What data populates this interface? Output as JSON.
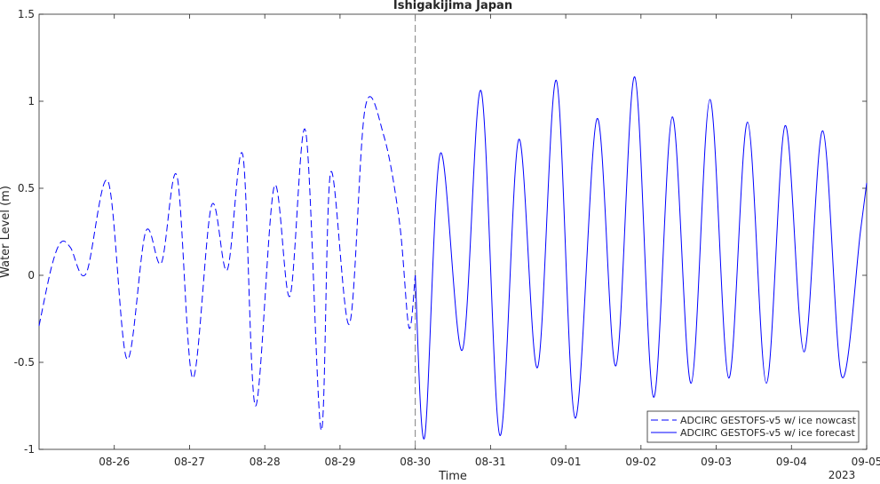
{
  "chart_data": {
    "type": "line",
    "title": "Ishigakijima Japan",
    "xlabel": "Time",
    "ylabel": "Water Level (m)",
    "year_label": "2023",
    "xlim": [
      "2023-08-25T00:00",
      "2023-09-05T00:00"
    ],
    "ylim": [
      -1,
      1.5
    ],
    "yticks": [
      -1,
      -0.5,
      0,
      0.5,
      1,
      1.5
    ],
    "ytick_labels": [
      "-1",
      "-0.5",
      "0",
      "0.5",
      "1",
      "1.5"
    ],
    "xticks": [
      "2023-08-26",
      "2023-08-27",
      "2023-08-28",
      "2023-08-29",
      "2023-08-30",
      "2023-08-31",
      "2023-09-01",
      "2023-09-02",
      "2023-09-03",
      "2023-09-04",
      "2023-09-05"
    ],
    "xtick_labels": [
      "08-26",
      "08-27",
      "08-28",
      "08-29",
      "08-30",
      "08-31",
      "09-01",
      "09-02",
      "09-03",
      "09-04",
      "09-05"
    ],
    "grid": false,
    "legend_position": "bottom-right",
    "annotations": [
      {
        "type": "vertical-line",
        "x": "2023-08-30T00:00",
        "style": "dashed",
        "color": "#808080"
      }
    ],
    "series": [
      {
        "name": "ADCIRC GESTOFS-v5 w/ ice nowcast",
        "style": "dashed",
        "color": "#0000ff",
        "x": [
          "2023-08-25T00:00",
          "2023-08-25T04:00",
          "2023-08-25T07:00",
          "2023-08-25T10:00",
          "2023-08-25T15:00",
          "2023-08-25T22:00",
          "2023-08-26T04:00",
          "2023-08-26T10:00",
          "2023-08-26T15:00",
          "2023-08-26T20:00",
          "2023-08-27T01:00",
          "2023-08-27T07:00",
          "2023-08-27T12:00",
          "2023-08-27T17:00",
          "2023-08-27T21:00",
          "2023-08-28T03:00",
          "2023-08-28T08:00",
          "2023-08-28T13:00",
          "2023-08-28T18:00",
          "2023-08-28T21:00",
          "2023-08-29T03:00",
          "2023-08-29T08:00",
          "2023-08-29T14:00",
          "2023-08-29T19:00",
          "2023-08-29T22:00",
          "2023-08-30T00:00"
        ],
        "y": [
          -0.29,
          0.05,
          0.19,
          0.16,
          0.01,
          0.54,
          -0.48,
          0.25,
          0.07,
          0.57,
          -0.59,
          0.4,
          0.03,
          0.69,
          -0.75,
          0.51,
          -0.12,
          0.83,
          -0.89,
          0.59,
          -0.28,
          0.96,
          0.8,
          0.3,
          -0.3,
          0.0
        ]
      },
      {
        "name": "ADCIRC GESTOFS-v5 w/ ice forecast",
        "style": "solid",
        "color": "#0000ff",
        "x": [
          "2023-08-30T00:00",
          "2023-08-30T03:00",
          "2023-08-30T08:00",
          "2023-08-30T15:00",
          "2023-08-30T21:00",
          "2023-08-31T03:00",
          "2023-08-31T09:00",
          "2023-08-31T15:00",
          "2023-08-31T21:00",
          "2023-09-01T03:00",
          "2023-09-01T10:00",
          "2023-09-01T16:00",
          "2023-09-01T22:00",
          "2023-09-02T04:00",
          "2023-09-02T10:00",
          "2023-09-02T16:00",
          "2023-09-02T22:00",
          "2023-09-03T04:00",
          "2023-09-03T10:00",
          "2023-09-03T16:00",
          "2023-09-03T22:00",
          "2023-09-04T04:00",
          "2023-09-04T10:00",
          "2023-09-04T16:00",
          "2023-09-04T22:00",
          "2023-09-05T00:00"
        ],
        "y": [
          0.0,
          -0.93,
          0.7,
          -0.43,
          1.06,
          -0.92,
          0.78,
          -0.53,
          1.12,
          -0.82,
          0.9,
          -0.52,
          1.14,
          -0.7,
          0.91,
          -0.62,
          1.01,
          -0.59,
          0.88,
          -0.62,
          0.86,
          -0.44,
          0.83,
          -0.58,
          0.25,
          0.53
        ]
      }
    ]
  }
}
